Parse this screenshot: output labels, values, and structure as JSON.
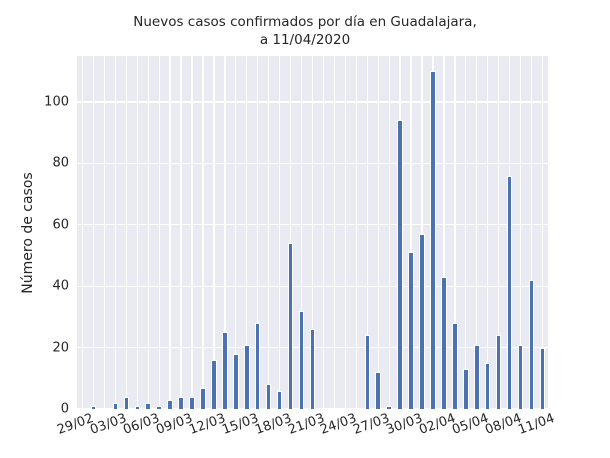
{
  "chart_data": {
    "type": "bar",
    "title": "Nuevos casos confirmados por día en Guadalajara,",
    "subtitle": "a 11/04/2020",
    "xlabel": "",
    "ylabel": "Número de casos",
    "ylim": [
      0,
      115
    ],
    "grid": true,
    "legend": null,
    "bar_color": "#4c72b0",
    "background_color": "#eaeaf2",
    "categories": [
      "29/02",
      "01/03",
      "02/03",
      "03/03",
      "04/03",
      "05/03",
      "06/03",
      "07/03",
      "08/03",
      "09/03",
      "10/03",
      "11/03",
      "12/03",
      "13/03",
      "14/03",
      "15/03",
      "16/03",
      "17/03",
      "18/03",
      "19/03",
      "20/03",
      "21/03",
      "22/03",
      "23/03",
      "24/03",
      "25/03",
      "26/03",
      "27/03",
      "28/03",
      "29/03",
      "30/03",
      "31/03",
      "01/04",
      "02/04",
      "03/04",
      "04/04",
      "05/04",
      "06/04",
      "07/04",
      "08/04",
      "09/04",
      "10/04",
      "11/04"
    ],
    "values": [
      0,
      1,
      0,
      2,
      4,
      1,
      2,
      1,
      3,
      4,
      4,
      7,
      16,
      25,
      18,
      21,
      28,
      8,
      6,
      54,
      32,
      26,
      0,
      0,
      0,
      0,
      24,
      12,
      1,
      94,
      51,
      57,
      110,
      43,
      28,
      13,
      21,
      15,
      24,
      76,
      21,
      42,
      20
    ],
    "x_tick_labels": [
      "29/02",
      "03/03",
      "06/03",
      "09/03",
      "12/03",
      "15/03",
      "18/03",
      "21/03",
      "24/03",
      "27/03",
      "30/03",
      "02/04",
      "05/04",
      "08/04",
      "11/04"
    ],
    "y_ticks": [
      0,
      20,
      40,
      60,
      80,
      100
    ]
  },
  "header": {
    "title_line1": "Nuevos casos confirmados por día en Guadalajara,",
    "title_line2": "a 11/04/2020"
  },
  "axes": {
    "ylabel": "Número de casos"
  }
}
